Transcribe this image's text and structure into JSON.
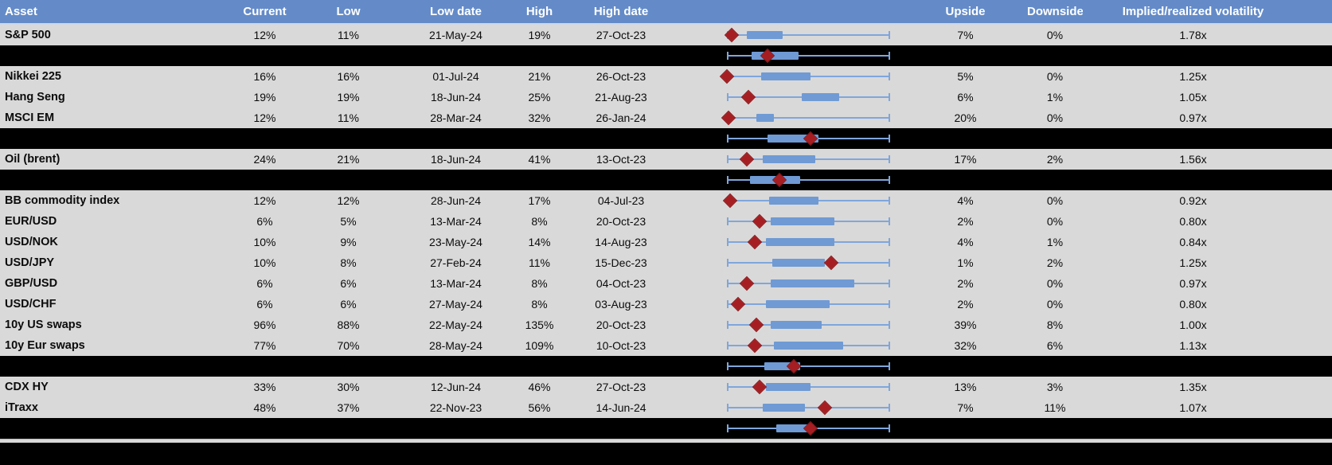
{
  "colors": {
    "header_bg": "#648BC8",
    "row_bg": "#D9D9D9",
    "separator_bg": "#000000",
    "box_fill": "#6F9AD4",
    "whisker": "#7FA6DC",
    "diamond": "#A61E22",
    "header_text": "#FFFFFF",
    "body_text": "#000000"
  },
  "table": {
    "headers": {
      "asset": "Asset",
      "current": "Current",
      "low": "Low",
      "low_date": "Low date",
      "high": "High",
      "high_date": "High date",
      "chart": "",
      "upside": "Upside",
      "downside": "Downside",
      "implied": "Implied/realized volatility"
    },
    "rows": [
      {
        "type": "data",
        "asset": "S&P 500",
        "current": "12%",
        "low": "11%",
        "low_date": "21-May-24",
        "high": "19%",
        "high_date": "27-Oct-23",
        "upside": "7%",
        "downside": "0%",
        "implied": "1.78x",
        "box": {
          "box_start_pct": 12,
          "box_end_pct": 34,
          "diamond_pct": 3
        }
      },
      {
        "type": "separator",
        "box": {
          "box_start_pct": 15,
          "box_end_pct": 44,
          "diamond_pct": 25
        }
      },
      {
        "type": "data",
        "asset": "Nikkei 225",
        "current": "16%",
        "low": "16%",
        "low_date": "01-Jul-24",
        "high": "21%",
        "high_date": "26-Oct-23",
        "upside": "5%",
        "downside": "0%",
        "implied": "1.25x",
        "box": {
          "box_start_pct": 21,
          "box_end_pct": 51,
          "diamond_pct": 0
        }
      },
      {
        "type": "data",
        "asset": "Hang Seng",
        "current": "19%",
        "low": "19%",
        "low_date": "18-Jun-24",
        "high": "25%",
        "high_date": "21-Aug-23",
        "upside": "6%",
        "downside": "1%",
        "implied": "1.05x",
        "box": {
          "box_start_pct": 46,
          "box_end_pct": 69,
          "diamond_pct": 13
        }
      },
      {
        "type": "data",
        "asset": "MSCI EM",
        "current": "12%",
        "low": "11%",
        "low_date": "28-Mar-24",
        "high": "32%",
        "high_date": "26-Jan-24",
        "upside": "20%",
        "downside": "0%",
        "implied": "0.97x",
        "box": {
          "box_start_pct": 18,
          "box_end_pct": 29,
          "diamond_pct": 1
        }
      },
      {
        "type": "separator",
        "box": {
          "box_start_pct": 25,
          "box_end_pct": 56,
          "diamond_pct": 51
        }
      },
      {
        "type": "data",
        "asset": "Oil (brent)",
        "current": "24%",
        "low": "21%",
        "low_date": "18-Jun-24",
        "high": "41%",
        "high_date": "13-Oct-23",
        "upside": "17%",
        "downside": "2%",
        "implied": "1.56x",
        "box": {
          "box_start_pct": 22,
          "box_end_pct": 54,
          "diamond_pct": 12
        }
      },
      {
        "type": "separator",
        "box": {
          "box_start_pct": 14,
          "box_end_pct": 45,
          "diamond_pct": 32
        }
      },
      {
        "type": "data",
        "asset": "BB commodity index",
        "current": "12%",
        "low": "12%",
        "low_date": "28-Jun-24",
        "high": "17%",
        "high_date": "04-Jul-23",
        "upside": "4%",
        "downside": "0%",
        "implied": "0.92x",
        "box": {
          "box_start_pct": 26,
          "box_end_pct": 56,
          "diamond_pct": 2
        }
      },
      {
        "type": "data",
        "asset": "EUR/USD",
        "current": "6%",
        "low": "5%",
        "low_date": "13-Mar-24",
        "high": "8%",
        "high_date": "20-Oct-23",
        "upside": "2%",
        "downside": "0%",
        "implied": "0.80x",
        "box": {
          "box_start_pct": 27,
          "box_end_pct": 66,
          "diamond_pct": 20
        }
      },
      {
        "type": "data",
        "asset": "USD/NOK",
        "current": "10%",
        "low": "9%",
        "low_date": "23-May-24",
        "high": "14%",
        "high_date": "14-Aug-23",
        "upside": "4%",
        "downside": "1%",
        "implied": "0.84x",
        "box": {
          "box_start_pct": 24,
          "box_end_pct": 66,
          "diamond_pct": 17
        }
      },
      {
        "type": "data",
        "asset": "USD/JPY",
        "current": "10%",
        "low": "8%",
        "low_date": "27-Feb-24",
        "high": "11%",
        "high_date": "15-Dec-23",
        "upside": "1%",
        "downside": "2%",
        "implied": "1.25x",
        "box": {
          "box_start_pct": 28,
          "box_end_pct": 60,
          "diamond_pct": 64
        }
      },
      {
        "type": "data",
        "asset": "GBP/USD",
        "current": "6%",
        "low": "6%",
        "low_date": "13-Mar-24",
        "high": "8%",
        "high_date": "04-Oct-23",
        "upside": "2%",
        "downside": "0%",
        "implied": "0.97x",
        "box": {
          "box_start_pct": 27,
          "box_end_pct": 78,
          "diamond_pct": 12
        }
      },
      {
        "type": "data",
        "asset": "USD/CHF",
        "current": "6%",
        "low": "6%",
        "low_date": "27-May-24",
        "high": "8%",
        "high_date": "03-Aug-23",
        "upside": "2%",
        "downside": "0%",
        "implied": "0.80x",
        "box": {
          "box_start_pct": 24,
          "box_end_pct": 63,
          "diamond_pct": 7
        }
      },
      {
        "type": "data",
        "asset": "10y US swaps",
        "current": "96%",
        "low": "88%",
        "low_date": "22-May-24",
        "high": "135%",
        "high_date": "20-Oct-23",
        "upside": "39%",
        "downside": "8%",
        "implied": "1.00x",
        "box": {
          "box_start_pct": 27,
          "box_end_pct": 58,
          "diamond_pct": 18
        }
      },
      {
        "type": "data",
        "asset": "10y Eur swaps",
        "current": "77%",
        "low": "70%",
        "low_date": "28-May-24",
        "high": "109%",
        "high_date": "10-Oct-23",
        "upside": "32%",
        "downside": "6%",
        "implied": "1.13x",
        "box": {
          "box_start_pct": 29,
          "box_end_pct": 71,
          "diamond_pct": 17
        }
      },
      {
        "type": "separator",
        "box": {
          "box_start_pct": 23,
          "box_end_pct": 45,
          "diamond_pct": 41
        }
      },
      {
        "type": "data",
        "asset": "CDX HY",
        "current": "33%",
        "low": "30%",
        "low_date": "12-Jun-24",
        "high": "46%",
        "high_date": "27-Oct-23",
        "upside": "13%",
        "downside": "3%",
        "implied": "1.35x",
        "box": {
          "box_start_pct": 24,
          "box_end_pct": 51,
          "diamond_pct": 20
        }
      },
      {
        "type": "data",
        "asset": "iTraxx",
        "current": "48%",
        "low": "37%",
        "low_date": "22-Nov-23",
        "high": "56%",
        "high_date": "14-Jun-24",
        "upside": "7%",
        "downside": "11%",
        "implied": "1.07x",
        "box": {
          "box_start_pct": 22,
          "box_end_pct": 48,
          "diamond_pct": 60
        }
      },
      {
        "type": "separator",
        "box": {
          "box_start_pct": 30,
          "box_end_pct": 53,
          "diamond_pct": 51
        }
      }
    ]
  },
  "chart_data": {
    "type": "table",
    "title": "",
    "columns": [
      "Asset",
      "Current",
      "Low",
      "Low date",
      "High",
      "High date",
      "Upside",
      "Downside",
      "Implied/realized volatility"
    ],
    "rows": [
      [
        "S&P 500",
        "12%",
        "11%",
        "21-May-24",
        "19%",
        "27-Oct-23",
        "7%",
        "0%",
        "1.78x"
      ],
      [
        "Nikkei 225",
        "16%",
        "16%",
        "01-Jul-24",
        "21%",
        "26-Oct-23",
        "5%",
        "0%",
        "1.25x"
      ],
      [
        "Hang Seng",
        "19%",
        "19%",
        "18-Jun-24",
        "25%",
        "21-Aug-23",
        "6%",
        "1%",
        "1.05x"
      ],
      [
        "MSCI EM",
        "12%",
        "11%",
        "28-Mar-24",
        "32%",
        "26-Jan-24",
        "20%",
        "0%",
        "0.97x"
      ],
      [
        "Oil (brent)",
        "24%",
        "21%",
        "18-Jun-24",
        "41%",
        "13-Oct-23",
        "17%",
        "2%",
        "1.56x"
      ],
      [
        "BB commodity index",
        "12%",
        "12%",
        "28-Jun-24",
        "17%",
        "04-Jul-23",
        "4%",
        "0%",
        "0.92x"
      ],
      [
        "EUR/USD",
        "6%",
        "5%",
        "13-Mar-24",
        "8%",
        "20-Oct-23",
        "2%",
        "0%",
        "0.80x"
      ],
      [
        "USD/NOK",
        "10%",
        "9%",
        "23-May-24",
        "14%",
        "14-Aug-23",
        "4%",
        "1%",
        "0.84x"
      ],
      [
        "USD/JPY",
        "10%",
        "8%",
        "27-Feb-24",
        "11%",
        "15-Dec-23",
        "1%",
        "2%",
        "1.25x"
      ],
      [
        "GBP/USD",
        "6%",
        "6%",
        "13-Mar-24",
        "8%",
        "04-Oct-23",
        "2%",
        "0%",
        "0.97x"
      ],
      [
        "USD/CHF",
        "6%",
        "6%",
        "27-May-24",
        "8%",
        "03-Aug-23",
        "2%",
        "0%",
        "0.80x"
      ],
      [
        "10y US swaps",
        "96%",
        "88%",
        "22-May-24",
        "135%",
        "20-Oct-23",
        "39%",
        "8%",
        "1.00x"
      ],
      [
        "10y Eur swaps",
        "77%",
        "70%",
        "28-May-24",
        "109%",
        "10-Oct-23",
        "32%",
        "6%",
        "1.13x"
      ],
      [
        "CDX HY",
        "33%",
        "30%",
        "12-Jun-24",
        "46%",
        "27-Oct-23",
        "13%",
        "3%",
        "1.35x"
      ],
      [
        "iTraxx",
        "48%",
        "37%",
        "22-Nov-23",
        "56%",
        "14-Jun-24",
        "7%",
        "11%",
        "1.07x"
      ]
    ],
    "embedded_chart": {
      "type": "boxplot",
      "orientation": "horizontal",
      "note": "Each row contains a horizontal whisker with end caps spanning the full low-high range, a blue box, and a dark red diamond marking the current level; positions (percent of whisker span) are stored in table.rows[].box. Black separator rows carry aggregate box plots.",
      "whisker_range_pct": [
        0,
        100
      ]
    }
  }
}
